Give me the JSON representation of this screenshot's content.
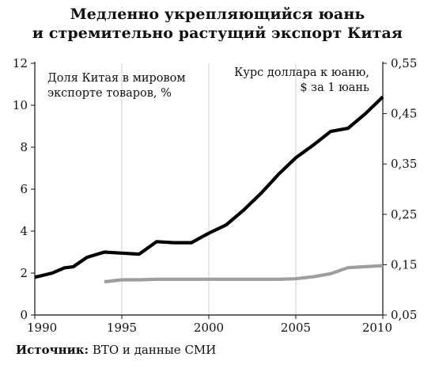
{
  "chart_data": {
    "type": "line",
    "title_lines": [
      "Медленно укрепляющийся юань",
      "и стремительно растущий экспорт Китая"
    ],
    "annotations": {
      "left_lines": [
        "Доля Китая в мировом",
        "экспорте товаров, %"
      ],
      "right_lines": [
        "Курс доллара к юаню,",
        "$ за 1 юань"
      ]
    },
    "x_ticks": [
      "1990",
      "1995",
      "2000",
      "2005",
      "2010"
    ],
    "x_range": [
      1990,
      2010
    ],
    "y_left": {
      "range": [
        0,
        12
      ],
      "ticks": [
        "0",
        "2",
        "4",
        "6",
        "8",
        "10",
        "12"
      ]
    },
    "y_right": {
      "range": [
        0.05,
        0.55
      ],
      "ticks": [
        "0,05",
        "0,15",
        "0,25",
        "0,35",
        "0,45",
        "0,55"
      ]
    },
    "vertical_grid_at": [
      1995,
      2000,
      2005
    ],
    "series": [
      {
        "axis": "left",
        "color": "#000000",
        "points": [
          [
            1990,
            1.8
          ],
          [
            1991,
            2.0
          ],
          [
            1991.7,
            2.25
          ],
          [
            1992.2,
            2.3
          ],
          [
            1993,
            2.75
          ],
          [
            1994,
            3.0
          ],
          [
            1995,
            2.95
          ],
          [
            1996,
            2.9
          ],
          [
            1997,
            3.5
          ],
          [
            1998,
            3.45
          ],
          [
            1999,
            3.45
          ],
          [
            2000,
            3.9
          ],
          [
            2001,
            4.3
          ],
          [
            2002,
            5.0
          ],
          [
            2003,
            5.8
          ],
          [
            2004,
            6.7
          ],
          [
            2005,
            7.5
          ],
          [
            2006,
            8.1
          ],
          [
            2007,
            8.75
          ],
          [
            2008,
            8.9
          ],
          [
            2009,
            9.6
          ],
          [
            2010,
            10.4
          ]
        ]
      },
      {
        "axis": "right",
        "color": "#9e9e9e",
        "points": [
          [
            1994,
            0.116
          ],
          [
            1995,
            0.12
          ],
          [
            1996,
            0.12
          ],
          [
            1997,
            0.121
          ],
          [
            1998,
            0.121
          ],
          [
            1999,
            0.121
          ],
          [
            2000,
            0.121
          ],
          [
            2001,
            0.121
          ],
          [
            2002,
            0.121
          ],
          [
            2003,
            0.121
          ],
          [
            2004,
            0.121
          ],
          [
            2005,
            0.122
          ],
          [
            2006,
            0.126
          ],
          [
            2007,
            0.132
          ],
          [
            2008,
            0.144
          ],
          [
            2009,
            0.146
          ],
          [
            2010,
            0.148
          ]
        ]
      }
    ]
  },
  "source": {
    "label": "Источник:",
    "text": " ВТО и данные СМИ"
  }
}
